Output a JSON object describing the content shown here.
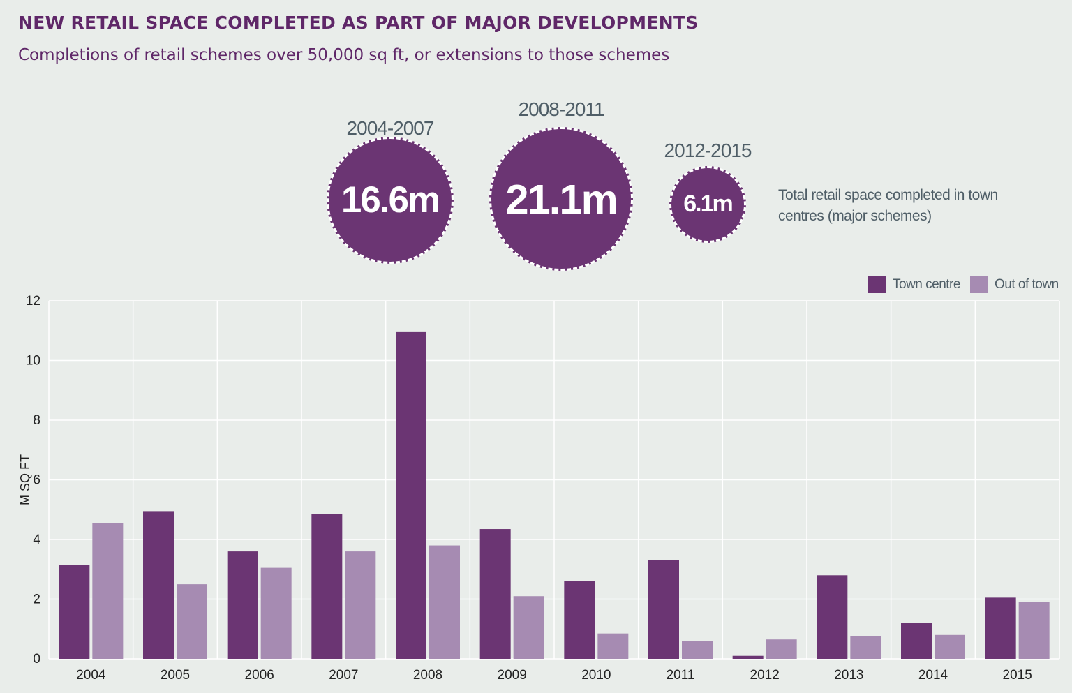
{
  "header": {
    "title": "NEW RETAIL SPACE COMPLETED AS PART OF MAJOR DEVELOPMENTS",
    "subtitle": "Completions of retail schemes over 50,000 sq ft, or extensions to those schemes"
  },
  "bubbles": [
    {
      "period": "2004-2007",
      "value": "16.6m",
      "amount": 16.6
    },
    {
      "period": "2008-2011",
      "value": "21.1m",
      "amount": 21.1
    },
    {
      "period": "2012-2015",
      "value": "6.1m",
      "amount": 6.1
    }
  ],
  "bubble_note": "Total retail space completed in town centres (major schemes)",
  "colors": {
    "town_centre": "#6b3573",
    "out_of_town": "#a68bb2",
    "background": "#e9edea",
    "title": "#5f2768"
  },
  "legend": {
    "placement": "top-right",
    "items": [
      {
        "label": "Town centre",
        "color": "#6b3573"
      },
      {
        "label": "Out of town",
        "color": "#a68bb2"
      }
    ]
  },
  "chart_data": {
    "type": "bar",
    "title": "",
    "xlabel": "",
    "ylabel": "M SQ FT",
    "ylim": [
      0,
      12
    ],
    "yticks": [
      0,
      2,
      4,
      6,
      8,
      10,
      12
    ],
    "grid": true,
    "categories": [
      "2004",
      "2005",
      "2006",
      "2007",
      "2008",
      "2009",
      "2010",
      "2011",
      "2012",
      "2013",
      "2014",
      "2015"
    ],
    "series": [
      {
        "name": "Town centre",
        "values": [
          3.15,
          4.95,
          3.6,
          4.85,
          10.95,
          4.35,
          2.6,
          3.3,
          0.1,
          2.8,
          1.2,
          2.05
        ]
      },
      {
        "name": "Out of town",
        "values": [
          4.55,
          2.5,
          3.05,
          3.6,
          3.8,
          2.1,
          0.85,
          0.6,
          0.65,
          0.75,
          0.8,
          1.9
        ]
      }
    ]
  }
}
